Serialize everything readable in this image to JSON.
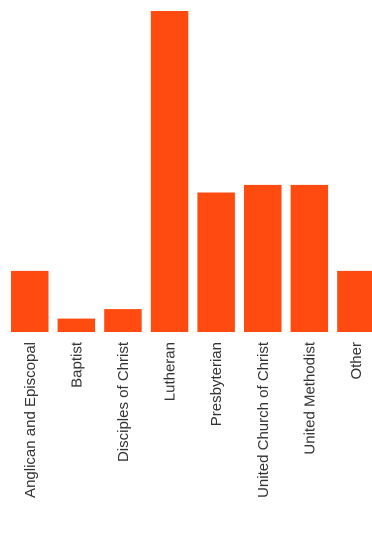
{
  "chart_data": {
    "type": "bar",
    "title": "",
    "xlabel": "",
    "ylabel": "",
    "categories": [
      "Anglican and Episcopal",
      "Baptist",
      "Disciples of Christ",
      "Lutheran",
      "Presbyterian",
      "United Church of Christ",
      "United Methodist",
      "Other"
    ],
    "values": [
      16,
      3.5,
      6,
      84,
      36.5,
      38.5,
      38.5,
      16
    ],
    "ylim": [
      0,
      84
    ],
    "grid": false,
    "legend": "none",
    "bar_color": "#ff4a10"
  }
}
